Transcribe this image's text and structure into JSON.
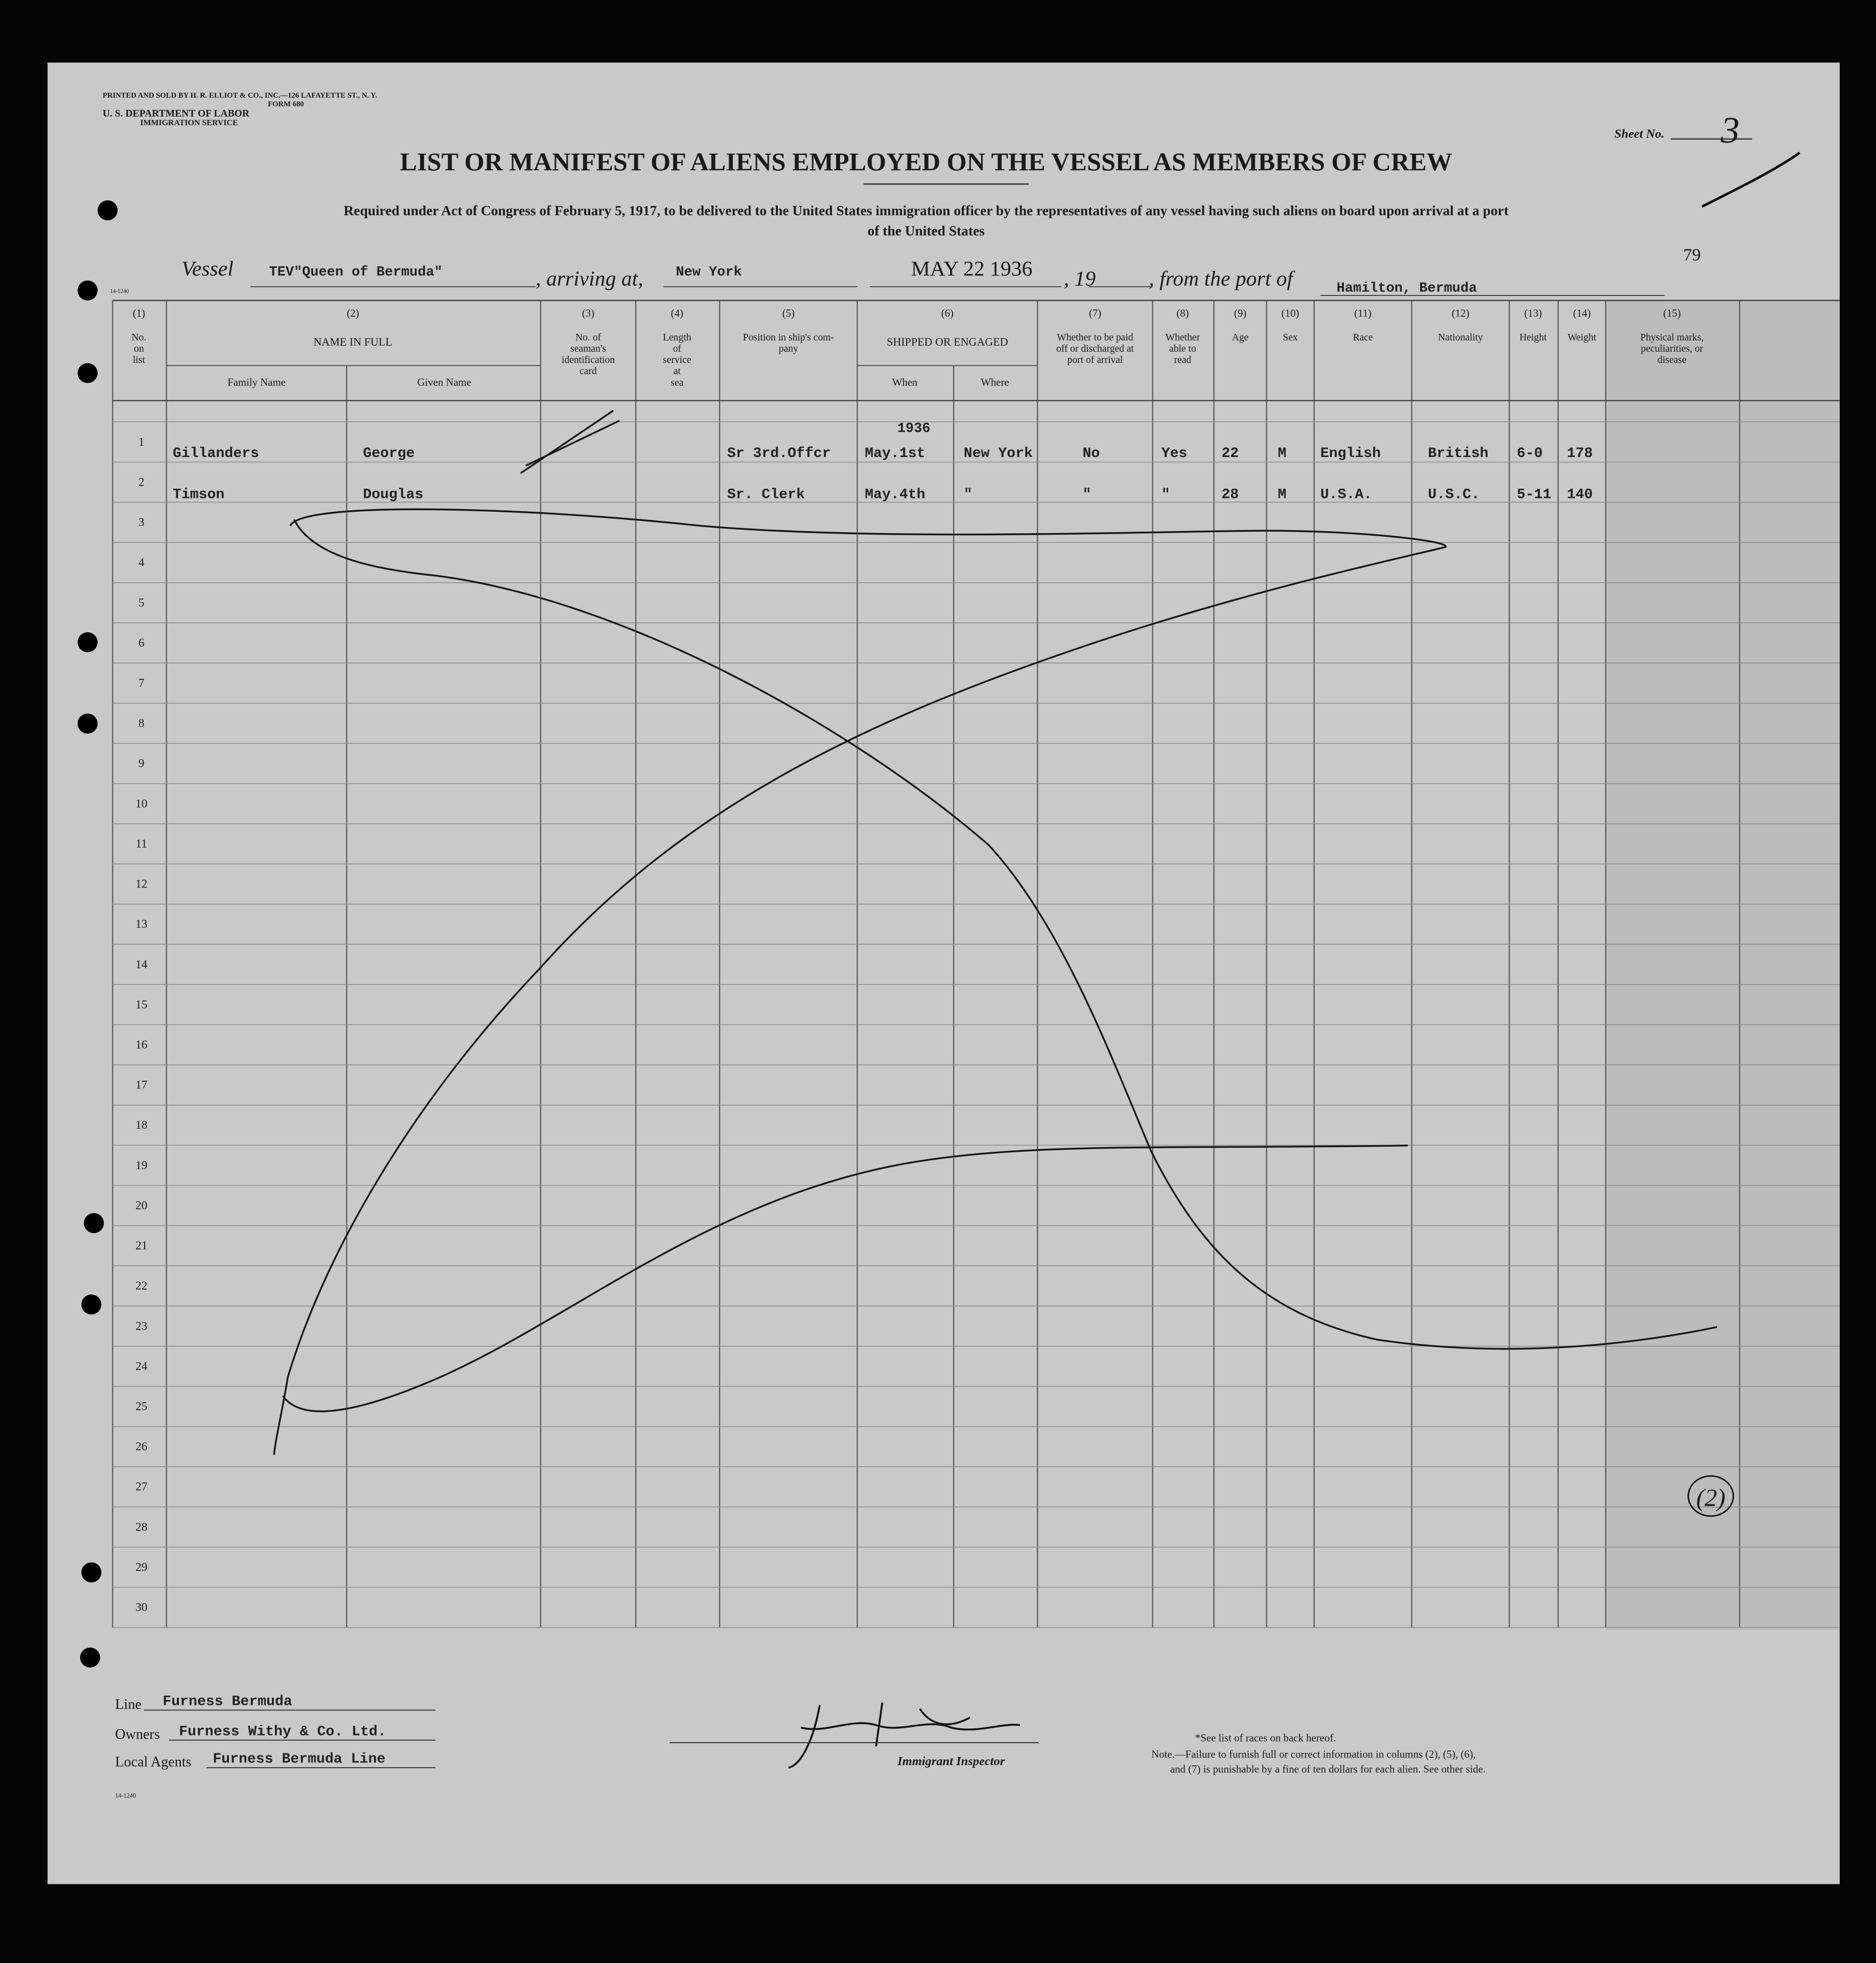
{
  "header": {
    "printer": "PRINTED AND SOLD BY H. R. ELLIOT & CO., INC.—126 LAFAYETTE ST., N. Y.",
    "form": "FORM 680",
    "department": "U. S. DEPARTMENT OF LABOR",
    "service": "IMMIGRATION SERVICE",
    "sheet_label": "Sheet No.",
    "sheet_number": "3",
    "title": "LIST OR MANIFEST OF ALIENS EMPLOYED ON THE VESSEL AS MEMBERS OF CREW",
    "subtitle_lines": [
      "Required under Act of Congress of February 5, 1917, to be delivered to the United States immigration officer by the representatives of any vessel having such aliens on board upon arrival at a port",
      "of the United States"
    ],
    "page_number": "79",
    "form_code": "14-1240"
  },
  "vessel": {
    "vessel_label": "Vessel",
    "vessel": "TEV\"Queen of Bermuda\"",
    "arriving_label": ", arriving at,",
    "arriving": "New York",
    "date_stamp": "MAY 22 1936",
    "year_label": ", 19",
    "from_label": ", from the port of",
    "from": "Hamilton, Bermuda"
  },
  "table": {
    "columns": [
      {
        "number": "(1)",
        "label": [
          "No.",
          "on",
          "list"
        ]
      },
      {
        "number": "(2)",
        "label": [
          "NAME IN FULL"
        ],
        "sub": [
          "Family Name",
          "Given Name"
        ]
      },
      {
        "number": "(3)",
        "label": [
          "No. of",
          "seaman's",
          "identification",
          "card"
        ]
      },
      {
        "number": "(4)",
        "label": [
          "Length",
          "of",
          "service",
          "at",
          "sea"
        ]
      },
      {
        "number": "(5)",
        "label": [
          "Position in ship's com-",
          "pany"
        ]
      },
      {
        "number": "(6)",
        "label": [
          "SHIPPED OR ENGAGED"
        ],
        "sub": [
          "When",
          "Where"
        ]
      },
      {
        "number": "(7)",
        "label": [
          "Whether to be paid",
          "off or discharged at",
          "port of arrival"
        ]
      },
      {
        "number": "(8)",
        "label": [
          "Whether",
          "able to",
          "read"
        ]
      },
      {
        "number": "(9)",
        "label": [
          "Age"
        ]
      },
      {
        "number": "(10)",
        "label": [
          "Sex"
        ]
      },
      {
        "number": "(11)",
        "label": [
          "Race"
        ]
      },
      {
        "number": "(12)",
        "label": [
          "Nationality"
        ]
      },
      {
        "number": "(13)",
        "label": [
          "Height"
        ]
      },
      {
        "number": "(14)",
        "label": [
          "Weight"
        ]
      },
      {
        "number": "(15)",
        "label": [
          "Physical marks,",
          "peculiarities, or",
          "disease"
        ]
      }
    ],
    "line_numbers": [
      1,
      2,
      3,
      4,
      5,
      6,
      7,
      8,
      9,
      10,
      11,
      12,
      13,
      14,
      15,
      16,
      17,
      18,
      19,
      20,
      21,
      22,
      23,
      24,
      25,
      26,
      27,
      28,
      29,
      30
    ],
    "rows": [
      {
        "family_name": "Gillanders",
        "given_name": "George",
        "position": "Sr 3rd.Offcr",
        "year": "1936",
        "when": "May.1st",
        "where": "New York",
        "paid_off": "No",
        "able_to_read": "Yes",
        "age": 22,
        "sex": "M",
        "race": "English",
        "nationality": "British",
        "height": "6-0",
        "weight": 178
      },
      {
        "family_name": "Timson",
        "given_name": "Douglas",
        "position": "Sr. Clerk",
        "when": "May.4th",
        "where": "\"",
        "paid_off": "\"",
        "able_to_read": "\"",
        "age": 28,
        "sex": "M",
        "race": "U.S.A.",
        "nationality": "U.S.C.",
        "height": "5-11",
        "weight": 140
      }
    ]
  },
  "footer": {
    "line_label": "Line",
    "line": "Furness Bermuda",
    "owners_label": "Owners",
    "owners": "Furness Withy & Co. Ltd.",
    "agents_label": "Local Agents",
    "agents": "Furness Bermuda Line",
    "inspector_label": "Immigrant Inspector",
    "note_lines": [
      "*See list of races on back hereof.",
      "Note.—Failure to furnish full or correct information in columns (2), (5), (6),",
      "and (7) is punishable by a fine of ten dollars for each alien.  See other side."
    ],
    "page_mark": "(2)"
  }
}
